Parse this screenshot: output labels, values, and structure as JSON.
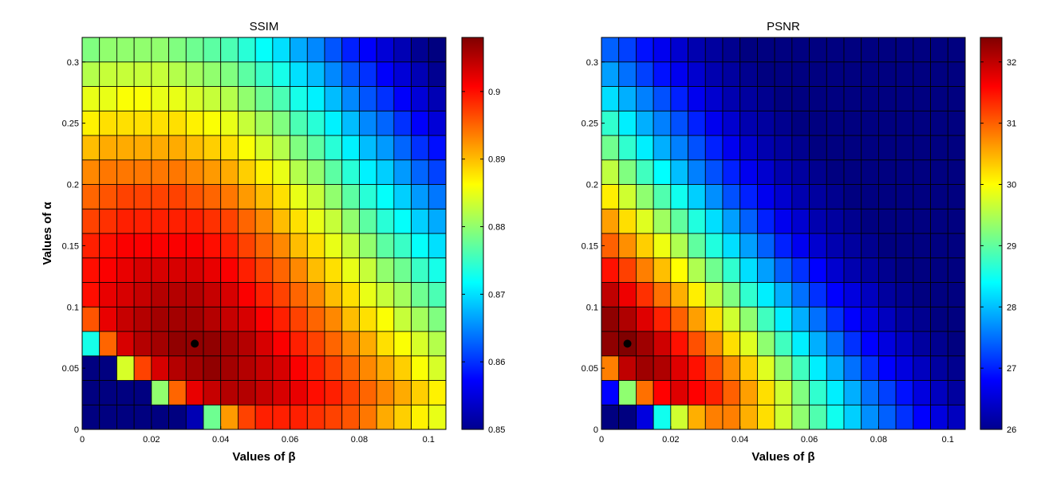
{
  "chart_data": [
    {
      "type": "heatmap",
      "title": "SSIM",
      "xlabel": "Values of β",
      "ylabel": "Values of α",
      "xlim": [
        0,
        0.105
      ],
      "ylim": [
        0,
        0.32
      ],
      "xticks": [
        "0",
        "0.02",
        "0.04",
        "0.06",
        "0.08",
        "0.1"
      ],
      "yticks": [
        "0",
        "0.05",
        "0.1",
        "0.15",
        "0.2",
        "0.25",
        "0.3"
      ],
      "colormap": "jet",
      "colorbar_range": [
        0.85,
        0.908
      ],
      "colorbar_ticks": [
        "0.85",
        "0.86",
        "0.87",
        "0.88",
        "0.89",
        "0.9"
      ],
      "x_edges": [
        0,
        0.005,
        0.01,
        0.015,
        0.02,
        0.025,
        0.03,
        0.035,
        0.04,
        0.045,
        0.05,
        0.055,
        0.06,
        0.065,
        0.07,
        0.075,
        0.08,
        0.085,
        0.09,
        0.095,
        0.1,
        0.105
      ],
      "y_edges": [
        0,
        0.02,
        0.04,
        0.06,
        0.08,
        0.1,
        0.12,
        0.14,
        0.16,
        0.18,
        0.2,
        0.22,
        0.24,
        0.26,
        0.28,
        0.3,
        0.32
      ],
      "marker": {
        "x": 0.0325,
        "y": 0.07
      },
      "values": [
        [
          0.85,
          0.85,
          0.85,
          0.85,
          0.85,
          0.85,
          0.853,
          0.878,
          0.892,
          0.897,
          0.899,
          0.899,
          0.899,
          0.898,
          0.897,
          0.896,
          0.894,
          0.891,
          0.889,
          0.887,
          0.885
        ],
        [
          0.85,
          0.85,
          0.85,
          0.85,
          0.88,
          0.895,
          0.902,
          0.904,
          0.905,
          0.905,
          0.904,
          0.903,
          0.902,
          0.9,
          0.899,
          0.897,
          0.895,
          0.893,
          0.891,
          0.889,
          0.887
        ],
        [
          0.85,
          0.85,
          0.884,
          0.897,
          0.903,
          0.905,
          0.906,
          0.907,
          0.906,
          0.905,
          0.904,
          0.903,
          0.901,
          0.899,
          0.897,
          0.895,
          0.893,
          0.891,
          0.889,
          0.886,
          0.884
        ],
        [
          0.873,
          0.895,
          0.903,
          0.905,
          0.906,
          0.907,
          0.907,
          0.907,
          0.906,
          0.905,
          0.903,
          0.901,
          0.899,
          0.897,
          0.895,
          0.893,
          0.891,
          0.888,
          0.886,
          0.884,
          0.882
        ],
        [
          0.896,
          0.902,
          0.904,
          0.905,
          0.906,
          0.906,
          0.906,
          0.905,
          0.904,
          0.903,
          0.901,
          0.899,
          0.897,
          0.895,
          0.893,
          0.89,
          0.888,
          0.886,
          0.883,
          0.881,
          0.879
        ],
        [
          0.9,
          0.902,
          0.903,
          0.904,
          0.905,
          0.905,
          0.905,
          0.904,
          0.903,
          0.901,
          0.899,
          0.897,
          0.895,
          0.893,
          0.89,
          0.888,
          0.885,
          0.883,
          0.881,
          0.878,
          0.876
        ],
        [
          0.9,
          0.901,
          0.902,
          0.903,
          0.903,
          0.903,
          0.903,
          0.902,
          0.901,
          0.899,
          0.897,
          0.895,
          0.893,
          0.89,
          0.888,
          0.885,
          0.883,
          0.88,
          0.878,
          0.875,
          0.873
        ],
        [
          0.899,
          0.9,
          0.901,
          0.901,
          0.901,
          0.901,
          0.901,
          0.9,
          0.899,
          0.897,
          0.895,
          0.893,
          0.89,
          0.888,
          0.885,
          0.883,
          0.88,
          0.877,
          0.875,
          0.872,
          0.87
        ],
        [
          0.897,
          0.898,
          0.899,
          0.899,
          0.899,
          0.899,
          0.899,
          0.898,
          0.897,
          0.895,
          0.893,
          0.89,
          0.888,
          0.885,
          0.883,
          0.88,
          0.877,
          0.874,
          0.872,
          0.869,
          0.867
        ],
        [
          0.895,
          0.896,
          0.897,
          0.897,
          0.897,
          0.897,
          0.896,
          0.895,
          0.894,
          0.892,
          0.89,
          0.888,
          0.885,
          0.883,
          0.88,
          0.877,
          0.874,
          0.872,
          0.869,
          0.866,
          0.864
        ],
        [
          0.893,
          0.894,
          0.894,
          0.894,
          0.894,
          0.894,
          0.893,
          0.892,
          0.891,
          0.889,
          0.887,
          0.885,
          0.882,
          0.88,
          0.877,
          0.874,
          0.871,
          0.869,
          0.866,
          0.863,
          0.861
        ],
        [
          0.89,
          0.891,
          0.891,
          0.891,
          0.891,
          0.891,
          0.89,
          0.889,
          0.888,
          0.886,
          0.884,
          0.882,
          0.879,
          0.877,
          0.874,
          0.871,
          0.868,
          0.866,
          0.863,
          0.86,
          0.858
        ],
        [
          0.887,
          0.888,
          0.888,
          0.888,
          0.888,
          0.888,
          0.887,
          0.886,
          0.885,
          0.883,
          0.881,
          0.879,
          0.876,
          0.874,
          0.871,
          0.868,
          0.865,
          0.863,
          0.86,
          0.857,
          0.855
        ],
        [
          0.885,
          0.885,
          0.886,
          0.886,
          0.885,
          0.885,
          0.884,
          0.883,
          0.882,
          0.88,
          0.878,
          0.876,
          0.873,
          0.871,
          0.868,
          0.865,
          0.862,
          0.86,
          0.857,
          0.855,
          0.853
        ],
        [
          0.882,
          0.883,
          0.883,
          0.883,
          0.883,
          0.882,
          0.881,
          0.88,
          0.879,
          0.877,
          0.875,
          0.873,
          0.87,
          0.868,
          0.865,
          0.862,
          0.86,
          0.857,
          0.855,
          0.853,
          0.851
        ],
        [
          0.879,
          0.88,
          0.88,
          0.88,
          0.88,
          0.879,
          0.878,
          0.877,
          0.876,
          0.874,
          0.872,
          0.87,
          0.867,
          0.865,
          0.862,
          0.859,
          0.857,
          0.855,
          0.853,
          0.851,
          0.85
        ]
      ]
    },
    {
      "type": "heatmap",
      "title": "PSNR",
      "xlabel": "Values of β",
      "ylabel": "",
      "xlim": [
        0,
        0.105
      ],
      "ylim": [
        0,
        0.32
      ],
      "xticks": [
        "0",
        "0.02",
        "0.04",
        "0.06",
        "0.08",
        "0.1"
      ],
      "yticks": [
        "0",
        "0.05",
        "0.1",
        "0.15",
        "0.2",
        "0.25",
        "0.3"
      ],
      "colormap": "jet",
      "colorbar_range": [
        26,
        32.4
      ],
      "colorbar_ticks": [
        "26",
        "27",
        "28",
        "29",
        "30",
        "31",
        "32"
      ],
      "x_edges": [
        0,
        0.005,
        0.01,
        0.015,
        0.02,
        0.025,
        0.03,
        0.035,
        0.04,
        0.045,
        0.05,
        0.055,
        0.06,
        0.065,
        0.07,
        0.075,
        0.08,
        0.085,
        0.09,
        0.095,
        0.1,
        0.105
      ],
      "y_edges": [
        0,
        0.02,
        0.04,
        0.06,
        0.08,
        0.1,
        0.12,
        0.14,
        0.16,
        0.18,
        0.2,
        0.22,
        0.24,
        0.26,
        0.28,
        0.3,
        0.32
      ],
      "marker": {
        "x": 0.0075,
        "y": 0.07
      },
      "values": [
        [
          26.0,
          26.0,
          26.6,
          28.5,
          29.7,
          30.5,
          30.8,
          30.8,
          30.5,
          30.2,
          29.7,
          29.3,
          28.9,
          28.5,
          28.1,
          27.7,
          27.4,
          27.1,
          26.8,
          26.6,
          26.4
        ],
        [
          26.8,
          29.3,
          30.9,
          31.6,
          31.8,
          31.6,
          31.4,
          31.0,
          30.6,
          30.2,
          29.7,
          29.2,
          28.7,
          28.3,
          27.9,
          27.5,
          27.2,
          26.9,
          26.6,
          26.4,
          26.2
        ],
        [
          30.8,
          32.0,
          32.2,
          32.1,
          31.8,
          31.5,
          31.1,
          30.7,
          30.3,
          29.8,
          29.3,
          28.8,
          28.3,
          27.9,
          27.5,
          27.1,
          26.8,
          26.6,
          26.4,
          26.2,
          26.1
        ],
        [
          32.3,
          32.4,
          32.2,
          31.9,
          31.5,
          31.1,
          30.7,
          30.2,
          29.8,
          29.3,
          28.8,
          28.3,
          27.9,
          27.5,
          27.1,
          26.8,
          26.6,
          26.4,
          26.2,
          26.1,
          26.0
        ],
        [
          32.3,
          32.1,
          31.8,
          31.4,
          31.0,
          30.6,
          30.2,
          29.7,
          29.3,
          28.8,
          28.3,
          27.9,
          27.5,
          27.1,
          26.8,
          26.6,
          26.4,
          26.2,
          26.1,
          26.0,
          26.0
        ],
        [
          32.0,
          31.7,
          31.3,
          30.9,
          30.5,
          30.1,
          29.6,
          29.2,
          28.7,
          28.3,
          27.9,
          27.5,
          27.1,
          26.8,
          26.6,
          26.4,
          26.2,
          26.1,
          26.0,
          26.0,
          26.0
        ],
        [
          31.5,
          31.2,
          30.8,
          30.4,
          30.0,
          29.5,
          29.1,
          28.7,
          28.2,
          27.8,
          27.4,
          27.1,
          26.8,
          26.5,
          26.3,
          26.2,
          26.1,
          26.0,
          26.0,
          26.0,
          26.0
        ],
        [
          31.0,
          30.7,
          30.3,
          29.9,
          29.5,
          29.0,
          28.6,
          28.2,
          27.8,
          27.4,
          27.0,
          26.7,
          26.5,
          26.3,
          26.2,
          26.1,
          26.0,
          26.0,
          26.0,
          26.0,
          26.0
        ],
        [
          30.6,
          30.2,
          29.8,
          29.4,
          29.0,
          28.6,
          28.2,
          27.8,
          27.4,
          27.0,
          26.7,
          26.5,
          26.3,
          26.2,
          26.1,
          26.0,
          26.0,
          26.0,
          26.0,
          26.0,
          26.0
        ],
        [
          30.1,
          29.7,
          29.3,
          28.9,
          28.5,
          28.1,
          27.7,
          27.3,
          27.0,
          26.7,
          26.5,
          26.3,
          26.2,
          26.1,
          26.0,
          26.0,
          26.0,
          26.0,
          26.0,
          26.0,
          26.0
        ],
        [
          29.6,
          29.2,
          28.8,
          28.4,
          28.0,
          27.6,
          27.3,
          27.0,
          26.7,
          26.5,
          26.3,
          26.2,
          26.1,
          26.0,
          26.0,
          26.0,
          26.0,
          26.0,
          26.0,
          26.0,
          26.0
        ],
        [
          29.1,
          28.7,
          28.3,
          27.9,
          27.6,
          27.3,
          27.0,
          26.7,
          26.5,
          26.3,
          26.2,
          26.1,
          26.0,
          26.0,
          26.0,
          26.0,
          26.0,
          26.0,
          26.0,
          26.0,
          26.0
        ],
        [
          28.7,
          28.3,
          27.9,
          27.6,
          27.3,
          27.0,
          26.7,
          26.5,
          26.3,
          26.2,
          26.1,
          26.0,
          26.0,
          26.0,
          26.0,
          26.0,
          26.0,
          26.0,
          26.0,
          26.0,
          26.0
        ],
        [
          28.2,
          27.9,
          27.6,
          27.3,
          27.0,
          26.7,
          26.5,
          26.3,
          26.2,
          26.1,
          26.0,
          26.0,
          26.0,
          26.0,
          26.0,
          26.0,
          26.0,
          26.0,
          26.0,
          26.0,
          26.0
        ],
        [
          27.8,
          27.5,
          27.2,
          26.9,
          26.7,
          26.5,
          26.3,
          26.2,
          26.1,
          26.0,
          26.0,
          26.0,
          26.0,
          26.0,
          26.0,
          26.0,
          26.0,
          26.0,
          26.0,
          26.0,
          26.0
        ],
        [
          27.4,
          27.2,
          26.9,
          26.7,
          26.5,
          26.3,
          26.2,
          26.1,
          26.0,
          26.0,
          26.0,
          26.0,
          26.0,
          26.0,
          26.0,
          26.0,
          26.0,
          26.0,
          26.0,
          26.0,
          26.0
        ]
      ]
    }
  ]
}
